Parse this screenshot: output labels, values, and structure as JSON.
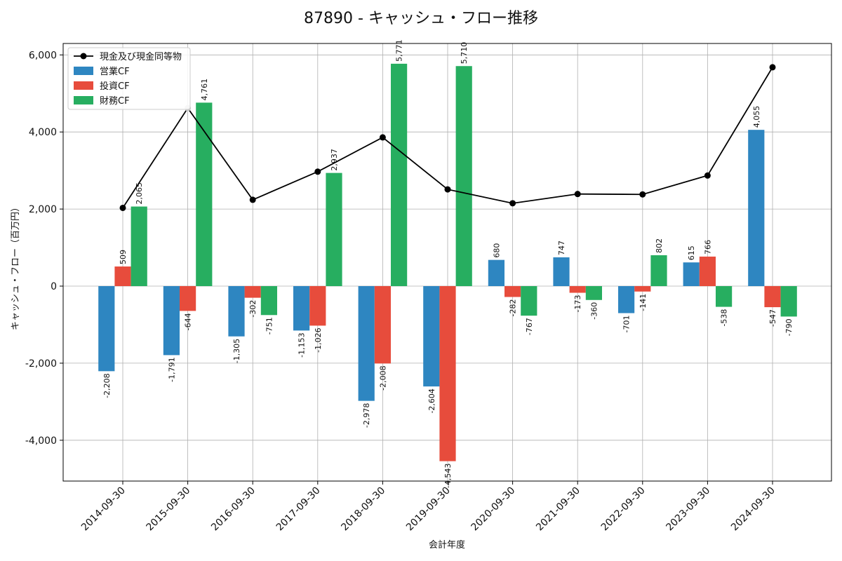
{
  "chart_data": {
    "type": "bar",
    "title": "87890 - キャッシュ・フロー推移",
    "xlabel": "会計年度",
    "ylabel": "キャッシュ・フロー（百万円）",
    "ylim": [
      -5000,
      6300
    ],
    "yticks": [
      -4000,
      -2000,
      0,
      2000,
      4000,
      6000
    ],
    "ytick_labels": [
      "-4,000",
      "-2,000",
      "0",
      "2,000",
      "4,000",
      "6,000"
    ],
    "grid": true,
    "legend_position": "top-left",
    "categories": [
      "2014-09-30",
      "2015-09-30",
      "2016-09-30",
      "2017-09-30",
      "2018-09-30",
      "2019-09-30",
      "2020-09-30",
      "2021-09-30",
      "2022-09-30",
      "2023-09-30",
      "2024-09-30"
    ],
    "series": [
      {
        "name": "営業CF",
        "color": "#2e86c1",
        "values": [
          -2208,
          -1791,
          -1305,
          -1153,
          -2978,
          -2604,
          680,
          747,
          -701,
          615,
          4055
        ],
        "labels": [
          "-2,208",
          "-1,791",
          "-1,305",
          "-1,153",
          "-2,978",
          "-2,604",
          "680",
          "747",
          "-701",
          "615",
          "4,055"
        ]
      },
      {
        "name": "投資CF",
        "color": "#e74c3c",
        "values": [
          509,
          -644,
          -302,
          -1026,
          -2008,
          -4543,
          -282,
          -173,
          -141,
          766,
          -547
        ],
        "labels": [
          "509",
          "-644",
          "-302",
          "-1,026",
          "-2,008",
          "-4,543",
          "-282",
          "-173",
          "-141",
          "766",
          "-547"
        ]
      },
      {
        "name": "財務CF",
        "color": "#27ae60",
        "values": [
          2065,
          4761,
          -751,
          2937,
          5771,
          5710,
          -767,
          -360,
          802,
          -538,
          -790
        ],
        "labels": [
          "2,065",
          "4,761",
          "-751",
          "2,937",
          "5,771",
          "5,710",
          "-767",
          "-360",
          "802",
          "-538",
          "-790"
        ]
      }
    ],
    "line_series": {
      "name": "現金及び現金同等物",
      "color": "#000000",
      "values": [
        2030,
        4620,
        2240,
        2970,
        3860,
        2510,
        2150,
        2390,
        2380,
        2870,
        5680
      ]
    }
  }
}
